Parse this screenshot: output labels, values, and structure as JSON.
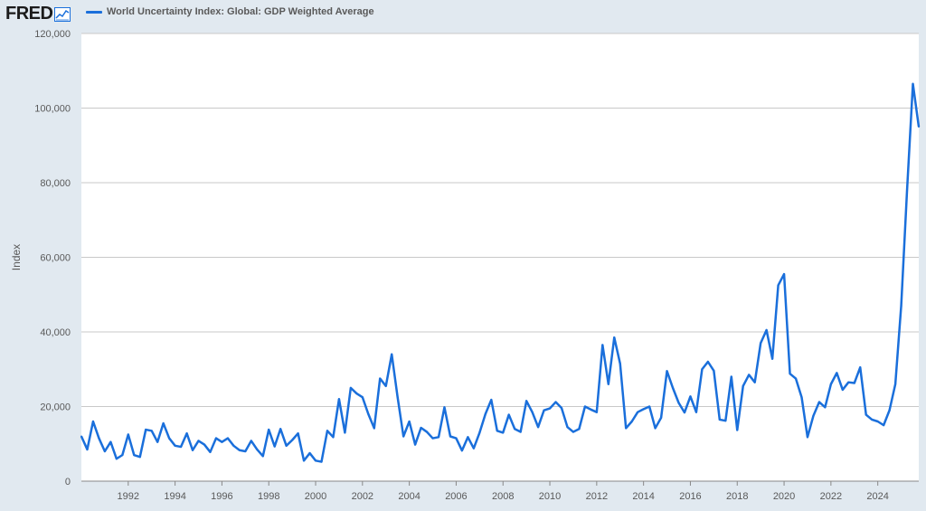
{
  "header": {
    "logo_text": "FRED",
    "logo_icon": "fred-chart-icon",
    "legend_label": "World Uncertainty Index: Global: GDP Weighted Average"
  },
  "colors": {
    "series": "#1a6fdb",
    "background": "#e1e9f0",
    "plot_background": "#ffffff",
    "grid": "#c9c9c9"
  },
  "chart_data": {
    "type": "line",
    "title": "",
    "xlabel": "",
    "ylabel": "Index",
    "xlim": [
      1990.0,
      2025.75
    ],
    "ylim": [
      0,
      120000
    ],
    "grid": true,
    "legend_position": "top-left",
    "x_ticks": [
      "1992",
      "1994",
      "1996",
      "1998",
      "2000",
      "2002",
      "2004",
      "2006",
      "2008",
      "2010",
      "2012",
      "2014",
      "2016",
      "2018",
      "2020",
      "2022",
      "2024"
    ],
    "y_ticks": [
      "0",
      "20,000",
      "40,000",
      "60,000",
      "80,000",
      "100,000",
      "120,000"
    ],
    "series": [
      {
        "name": "World Uncertainty Index: Global: GDP Weighted Average",
        "x": [
          1990.0,
          1990.25,
          1990.5,
          1990.75,
          1991.0,
          1991.25,
          1991.5,
          1991.75,
          1992.0,
          1992.25,
          1992.5,
          1992.75,
          1993.0,
          1993.25,
          1993.5,
          1993.75,
          1994.0,
          1994.25,
          1994.5,
          1994.75,
          1995.0,
          1995.25,
          1995.5,
          1995.75,
          1996.0,
          1996.25,
          1996.5,
          1996.75,
          1997.0,
          1997.25,
          1997.5,
          1997.75,
          1998.0,
          1998.25,
          1998.5,
          1998.75,
          1999.0,
          1999.25,
          1999.5,
          1999.75,
          2000.0,
          2000.25,
          2000.5,
          2000.75,
          2001.0,
          2001.25,
          2001.5,
          2001.75,
          2002.0,
          2002.25,
          2002.5,
          2002.75,
          2003.0,
          2003.25,
          2003.5,
          2003.75,
          2004.0,
          2004.25,
          2004.5,
          2004.75,
          2005.0,
          2005.25,
          2005.5,
          2005.75,
          2006.0,
          2006.25,
          2006.5,
          2006.75,
          2007.0,
          2007.25,
          2007.5,
          2007.75,
          2008.0,
          2008.25,
          2008.5,
          2008.75,
          2009.0,
          2009.25,
          2009.5,
          2009.75,
          2010.0,
          2010.25,
          2010.5,
          2010.75,
          2011.0,
          2011.25,
          2011.5,
          2011.75,
          2012.0,
          2012.25,
          2012.5,
          2012.75,
          2013.0,
          2013.25,
          2013.5,
          2013.75,
          2014.0,
          2014.25,
          2014.5,
          2014.75,
          2015.0,
          2015.25,
          2015.5,
          2015.75,
          2016.0,
          2016.25,
          2016.5,
          2016.75,
          2017.0,
          2017.25,
          2017.5,
          2017.75,
          2018.0,
          2018.25,
          2018.5,
          2018.75,
          2019.0,
          2019.25,
          2019.5,
          2019.75,
          2020.0,
          2020.25,
          2020.5,
          2020.75,
          2021.0,
          2021.25,
          2021.5,
          2021.75,
          2022.0,
          2022.25,
          2022.5,
          2022.75,
          2023.0,
          2023.25,
          2023.5,
          2023.75,
          2024.0,
          2024.25,
          2024.5,
          2024.75,
          2025.0,
          2025.25,
          2025.5,
          2025.75
        ],
        "values": [
          12000,
          8500,
          16000,
          11500,
          8000,
          10500,
          6000,
          7000,
          12500,
          7000,
          6500,
          13800,
          13500,
          10500,
          15500,
          11500,
          9500,
          9200,
          12800,
          8300,
          10800,
          9800,
          7800,
          11500,
          10500,
          11500,
          9500,
          8300,
          8000,
          10800,
          8500,
          6700,
          13800,
          9300,
          14000,
          9500,
          11000,
          12800,
          5500,
          7500,
          5500,
          5200,
          13500,
          11800,
          22000,
          13000,
          25000,
          23500,
          22500,
          18000,
          14200,
          27500,
          25500,
          34000,
          22500,
          12000,
          16000,
          9800,
          14300,
          13200,
          11500,
          11800,
          19800,
          12000,
          11500,
          8200,
          11800,
          8800,
          13000,
          18000,
          21800,
          13500,
          13000,
          17800,
          14000,
          13200,
          21500,
          18500,
          14500,
          19000,
          19500,
          21200,
          19600,
          14500,
          13200,
          14000,
          20000,
          19200,
          18500,
          36500,
          26000,
          38500,
          31500,
          14200,
          16000,
          18500,
          19300,
          20000,
          14200,
          17000,
          29500,
          25000,
          21000,
          18400,
          22700,
          18500,
          30000,
          32000,
          29600,
          16500,
          16200,
          28000,
          13700,
          25500,
          28500,
          26500,
          37000,
          40500,
          32800,
          52500,
          55500,
          28800,
          27500,
          22500,
          11800,
          17500,
          21200,
          19800,
          26000,
          29000,
          24500,
          26500,
          26300,
          30500,
          17800,
          16500,
          16000,
          15000,
          19000,
          26000,
          47000,
          78000,
          106500,
          95000
        ]
      }
    ]
  }
}
